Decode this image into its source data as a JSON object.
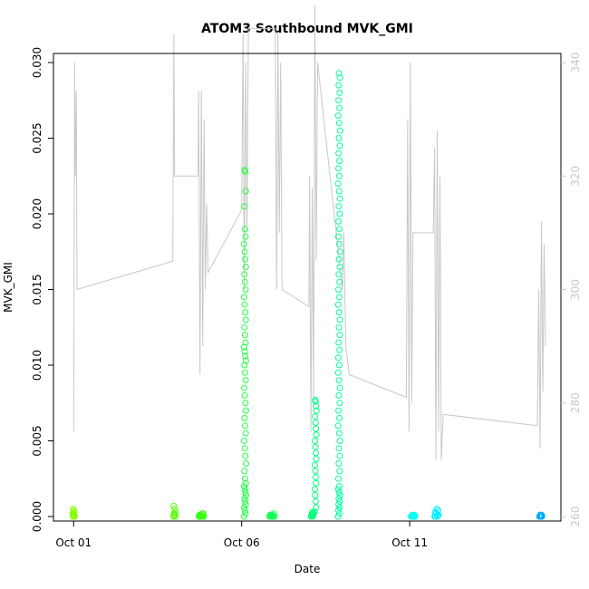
{
  "chart_data": {
    "type": "scatter",
    "title": "ATOM3 Southbound MVK_GMI",
    "xlabel": "Date",
    "ylabel": "MVK_GMI",
    "x_ticks": [
      "Oct 01",
      "Oct 06",
      "Oct 11"
    ],
    "x_tick_days": [
      1,
      6,
      11
    ],
    "xlim_days": [
      0.4,
      15.5
    ],
    "ylim": [
      -0.0003,
      0.0306
    ],
    "y_ticks": [
      0.0,
      0.005,
      0.01,
      0.015,
      0.02,
      0.025,
      0.03
    ],
    "y_tick_labels": [
      "0.000",
      "0.005",
      "0.010",
      "0.015",
      "0.020",
      "0.025",
      "0.030"
    ],
    "right_axis": {
      "ticks": [
        260,
        280,
        300,
        320,
        340
      ],
      "ylim": [
        259.2,
        341.6
      ],
      "color": "#c8c8c8",
      "series_color": "#c8c8c8"
    },
    "grid": false,
    "point_groups": [
      {
        "day": 1.0,
        "spread": 0.06,
        "color": "#80ff00",
        "values": [
          0,
          0,
          0.0001,
          0.0002,
          0.0003,
          0.0004,
          0.0005,
          0,
          0.0001,
          0.0002
        ]
      },
      {
        "day": 4.0,
        "spread": 0.06,
        "color": "#55ff00",
        "values": [
          0,
          0.0001,
          0.0002,
          0.0003,
          0.0005,
          0.0007,
          0,
          0.0001
        ]
      },
      {
        "day": 4.8,
        "spread": 0.15,
        "color": "#33ff11",
        "values": [
          0,
          0,
          0.0001,
          0.0001,
          0.0002,
          0,
          0.0001,
          0,
          0.0002,
          0
        ]
      },
      {
        "day": 6.1,
        "spread": 0.06,
        "color": "#22ff44",
        "values": [
          0,
          0.0002,
          0.0004,
          0.0006,
          0.0008,
          0.001,
          0.0012,
          0.0014,
          0.0016,
          0.0018,
          0.002,
          0.0022,
          0.0025,
          0.003,
          0.0035,
          0.004,
          0.0045,
          0.005,
          0.0055,
          0.006,
          0.0065,
          0.007,
          0.0075,
          0.008,
          0.0085,
          0.009,
          0.0095,
          0.01,
          0.0103,
          0.0106,
          0.0109,
          0.0112,
          0.0115,
          0.012,
          0.0125,
          0.013,
          0.0135,
          0.014,
          0.0145,
          0.015,
          0.0155,
          0.016,
          0.0165,
          0.017,
          0.0175,
          0.018,
          0.0185,
          0.019,
          0.0205,
          0.0215,
          0.0228,
          0.0229
        ]
      },
      {
        "day": 6.9,
        "spread": 0.15,
        "color": "#11ff55",
        "values": [
          0,
          0,
          0.0001,
          0.0001,
          0.0002,
          0,
          0.0001,
          0,
          0.0001,
          0
        ]
      },
      {
        "day": 8.1,
        "spread": 0.08,
        "color": "#00ff77",
        "values": [
          0,
          0,
          0.0001,
          0.0002,
          0.0003,
          0,
          0.0001,
          0.0002
        ]
      },
      {
        "day": 8.2,
        "spread": 0.05,
        "color": "#00ff88",
        "values": [
          0.0003,
          0.0006,
          0.001,
          0.0014,
          0.0018,
          0.0022,
          0.0026,
          0.003,
          0.0034,
          0.0038,
          0.0042,
          0.0046,
          0.005,
          0.0054,
          0.0058,
          0.0062,
          0.0066,
          0.007,
          0.0073,
          0.0076,
          0.0077
        ]
      },
      {
        "day": 8.9,
        "spread": 0.06,
        "color": "#00ffa0",
        "values": [
          0,
          0.0002,
          0.0004,
          0.0006,
          0.0008,
          0.001,
          0.0012,
          0.0014,
          0.0016,
          0.0018,
          0.002,
          0.0025,
          0.003,
          0.0035,
          0.004,
          0.0045,
          0.005,
          0.0055,
          0.006,
          0.0065,
          0.007,
          0.0075,
          0.008,
          0.0085,
          0.009,
          0.0095,
          0.01,
          0.0105,
          0.011,
          0.0115,
          0.012,
          0.0125,
          0.013,
          0.0135,
          0.014,
          0.0145,
          0.015,
          0.0155,
          0.016,
          0.0165,
          0.017,
          0.0175,
          0.018,
          0.0185,
          0.019,
          0.0195,
          0.02,
          0.0205,
          0.021,
          0.0215,
          0.022,
          0.0225,
          0.023,
          0.0235,
          0.024,
          0.0245,
          0.025,
          0.0255,
          0.026,
          0.0265,
          0.027,
          0.0275,
          0.028,
          0.0285,
          0.029,
          0.0293
        ]
      },
      {
        "day": 11.1,
        "spread": 0.12,
        "color": "#00ffee",
        "values": [
          0,
          0,
          0.0001,
          0,
          0.0001,
          0,
          0.0001,
          0
        ]
      },
      {
        "day": 11.8,
        "spread": 0.12,
        "color": "#00eeff",
        "values": [
          0,
          0.0001,
          0.0002,
          0.0003,
          0.0004,
          0.0005,
          0,
          0.0001,
          0,
          0.0002
        ]
      },
      {
        "day": 14.9,
        "spread": 0.08,
        "color": "#00aaff",
        "values": [
          0,
          0,
          0.0001,
          0,
          0.0001,
          0,
          0.0001,
          0
        ]
      }
    ],
    "right_series": {
      "name": "",
      "points": [
        [
          1.0,
          275
        ],
        [
          1.03,
          340
        ],
        [
          1.05,
          320
        ],
        [
          1.08,
          335
        ],
        [
          1.1,
          300
        ],
        [
          3.95,
          305
        ],
        [
          3.98,
          345
        ],
        [
          4.0,
          320
        ],
        [
          4.7,
          320
        ],
        [
          4.72,
          335
        ],
        [
          4.76,
          285
        ],
        [
          4.8,
          335
        ],
        [
          4.84,
          290
        ],
        [
          4.88,
          330
        ],
        [
          4.92,
          300
        ],
        [
          4.96,
          315
        ],
        [
          5.0,
          303
        ],
        [
          6.0,
          314
        ],
        [
          6.04,
          345
        ],
        [
          6.08,
          300
        ],
        [
          6.12,
          340
        ],
        [
          6.16,
          310
        ],
        [
          6.2,
          346
        ],
        [
          7.0,
          346
        ],
        [
          7.04,
          300
        ],
        [
          7.08,
          345
        ],
        [
          7.12,
          310
        ],
        [
          7.16,
          340
        ],
        [
          7.2,
          300
        ],
        [
          8.0,
          297
        ],
        [
          8.02,
          320
        ],
        [
          8.06,
          275
        ],
        [
          8.1,
          318
        ],
        [
          8.14,
          280
        ],
        [
          8.18,
          350
        ],
        [
          8.22,
          305
        ],
        [
          8.26,
          340
        ],
        [
          9.0,
          300
        ],
        [
          9.04,
          310
        ],
        [
          9.1,
          290
        ],
        [
          9.2,
          285
        ],
        [
          10.9,
          281
        ],
        [
          10.94,
          330
        ],
        [
          10.98,
          275
        ],
        [
          11.02,
          340
        ],
        [
          11.06,
          280
        ],
        [
          11.1,
          310
        ],
        [
          11.7,
          310
        ],
        [
          11.74,
          325
        ],
        [
          11.78,
          270
        ],
        [
          11.82,
          328
        ],
        [
          11.86,
          275
        ],
        [
          11.9,
          320
        ],
        [
          11.94,
          270
        ],
        [
          12.0,
          278
        ],
        [
          14.8,
          276
        ],
        [
          14.84,
          300
        ],
        [
          14.88,
          272
        ],
        [
          14.92,
          312
        ],
        [
          14.96,
          282
        ],
        [
          15.0,
          308
        ],
        [
          15.04,
          290
        ]
      ]
    }
  }
}
